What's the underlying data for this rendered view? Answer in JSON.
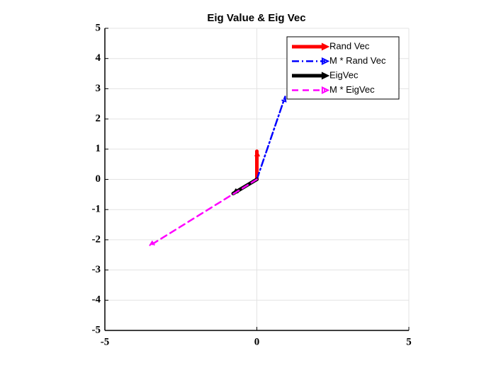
{
  "chart_data": {
    "type": "quiver",
    "title": "Eig Value & Eig Vec",
    "xlim": [
      -5,
      5
    ],
    "ylim": [
      -5,
      5
    ],
    "xticks": [
      -5,
      0,
      5
    ],
    "yticks": [
      -5,
      -4,
      -3,
      -2,
      -1,
      0,
      1,
      2,
      3,
      4,
      5
    ],
    "grid": true,
    "legend": "northeast",
    "series": [
      {
        "name": "Rand Vec",
        "color": "#ff0000",
        "style": "solid",
        "x": [
          0,
          0
        ],
        "y": [
          0,
          0.93
        ]
      },
      {
        "name": "M * Rand Vec",
        "color": "#0000ff",
        "style": "dashdot",
        "x": [
          0,
          0.93
        ],
        "y": [
          0,
          2.74
        ]
      },
      {
        "name": "EigVec",
        "color": "#000000",
        "style": "solid",
        "x": [
          0,
          -0.78
        ],
        "y": [
          0,
          -0.47
        ]
      },
      {
        "name": "M * EigVec",
        "color": "#ff00ff",
        "style": "dashed",
        "x": [
          0,
          -3.53
        ],
        "y": [
          0,
          -2.2
        ]
      }
    ]
  }
}
